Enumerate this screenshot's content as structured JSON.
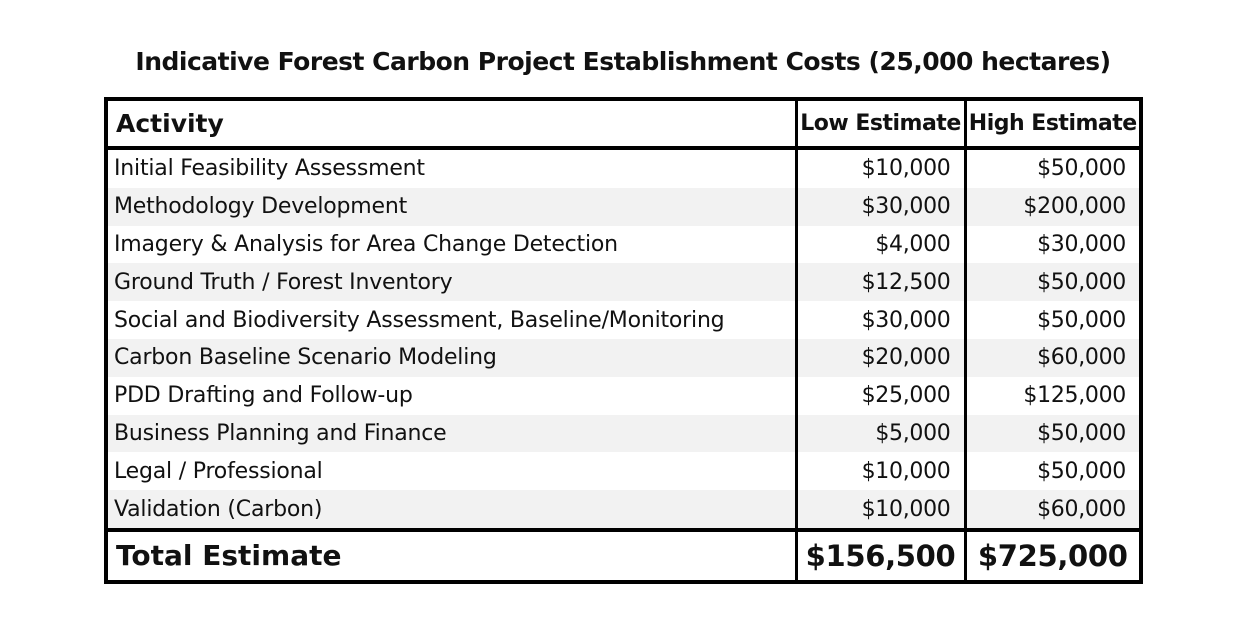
{
  "chart_data": {
    "type": "table",
    "title": "Indicative Forest Carbon Project Establishment Costs (25,000 hectares)",
    "columns": [
      "Activity",
      "Low Estimate",
      "High Estimate"
    ],
    "rows": [
      {
        "activity": "Initial Feasibility Assessment",
        "low": "$10,000",
        "high": "$50,000"
      },
      {
        "activity": "Methodology Development",
        "low": "$30,000",
        "high": "$200,000"
      },
      {
        "activity": "Imagery & Analysis for Area Change Detection",
        "low": "$4,000",
        "high": "$30,000"
      },
      {
        "activity": "Ground Truth / Forest Inventory",
        "low": "$12,500",
        "high": "$50,000"
      },
      {
        "activity": "Social and Biodiversity Assessment, Baseline/Monitoring",
        "low": "$30,000",
        "high": "$50,000"
      },
      {
        "activity": "Carbon Baseline Scenario Modeling",
        "low": "$20,000",
        "high": "$60,000"
      },
      {
        "activity": "PDD Drafting and Follow-up",
        "low": "$25,000",
        "high": "$125,000"
      },
      {
        "activity": "Business Planning and Finance",
        "low": "$5,000",
        "high": "$50,000"
      },
      {
        "activity": "Legal / Professional",
        "low": "$10,000",
        "high": "$50,000"
      },
      {
        "activity": "Validation (Carbon)",
        "low": "$10,000",
        "high": "$60,000"
      }
    ],
    "total": {
      "label": "Total Estimate",
      "low": "$156,500",
      "high": "$725,000"
    }
  }
}
